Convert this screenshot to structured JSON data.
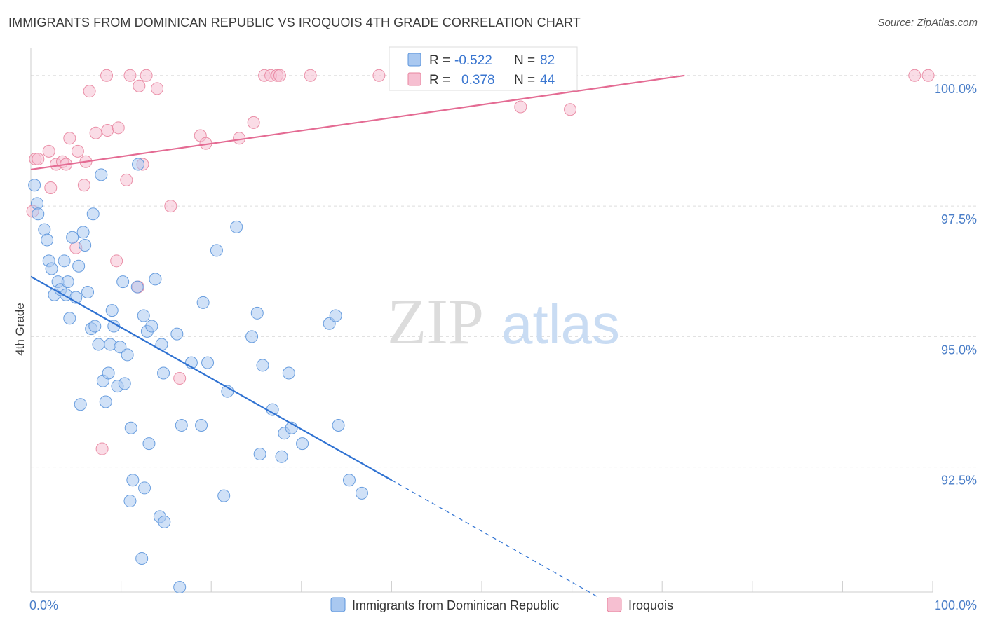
{
  "chart_data": {
    "type": "scatter",
    "title": "IMMIGRANTS FROM DOMINICAN REPUBLIC VS IROQUOIS 4TH GRADE CORRELATION CHART",
    "source": "Source: ZipAtlas.com",
    "ylabel": "4th Grade",
    "xlabel": "",
    "xlim": [
      0,
      100
    ],
    "ylim": [
      90.2,
      100.4
    ],
    "x_tick_labels": [
      "0.0%",
      "100.0%"
    ],
    "y_ticks": [
      {
        "value": 92.5,
        "label": "92.5%"
      },
      {
        "value": 95.0,
        "label": "95.0%"
      },
      {
        "value": 97.5,
        "label": "97.5%"
      },
      {
        "value": 100.0,
        "label": "100.0%"
      }
    ],
    "grid": true,
    "watermark": {
      "part1": "ZIP",
      "part2": "atlas"
    },
    "legend_box": {
      "rows": [
        {
          "r_label": "R =",
          "r_value": "-0.522",
          "n_label": "N =",
          "n_value": "82"
        },
        {
          "r_label": "R =",
          "r_value": "0.378",
          "n_label": "N =",
          "n_value": "44"
        }
      ]
    },
    "legend_bottom": [
      {
        "label": "Immigrants from Dominican Republic"
      },
      {
        "label": "Iroquois"
      }
    ],
    "colors": {
      "blue_fill": "#a9c8f0",
      "blue_stroke": "#5b95dc",
      "blue_line": "#2f72d2",
      "pink_fill": "#f6bfd1",
      "pink_stroke": "#e8849f",
      "pink_line": "#e46b93",
      "value_text": "#3a76d0",
      "axis_tick_label": "#4a7ec8",
      "grid": "#dddddd"
    },
    "series": [
      {
        "name": "Immigrants from Dominican Republic",
        "trend": {
          "x0": 0,
          "y0": 96.15,
          "x1": 40,
          "y1": 92.25,
          "dash_x1": 63,
          "dash_y1": 90.0
        },
        "points": [
          [
            0.4,
            97.9
          ],
          [
            0.7,
            97.55
          ],
          [
            0.8,
            97.35
          ],
          [
            1.5,
            97.05
          ],
          [
            1.8,
            96.85
          ],
          [
            2.0,
            96.45
          ],
          [
            2.3,
            96.3
          ],
          [
            2.6,
            95.8
          ],
          [
            3.0,
            96.05
          ],
          [
            3.3,
            95.9
          ],
          [
            3.7,
            96.45
          ],
          [
            3.9,
            95.8
          ],
          [
            4.1,
            96.05
          ],
          [
            4.3,
            95.35
          ],
          [
            4.6,
            96.9
          ],
          [
            5.0,
            95.75
          ],
          [
            5.3,
            96.35
          ],
          [
            5.5,
            93.7
          ],
          [
            5.8,
            97.0
          ],
          [
            6.0,
            96.75
          ],
          [
            6.3,
            95.85
          ],
          [
            6.7,
            95.15
          ],
          [
            6.9,
            97.35
          ],
          [
            7.1,
            95.2
          ],
          [
            7.5,
            94.85
          ],
          [
            7.8,
            98.1
          ],
          [
            8.0,
            94.15
          ],
          [
            8.3,
            93.75
          ],
          [
            8.6,
            94.3
          ],
          [
            8.8,
            94.85
          ],
          [
            9.0,
            95.5
          ],
          [
            9.2,
            95.2
          ],
          [
            9.6,
            94.05
          ],
          [
            9.9,
            94.8
          ],
          [
            10.2,
            96.05
          ],
          [
            10.4,
            94.1
          ],
          [
            10.7,
            94.65
          ],
          [
            11.0,
            91.85
          ],
          [
            11.3,
            92.25
          ],
          [
            11.1,
            93.25
          ],
          [
            11.8,
            95.95
          ],
          [
            11.9,
            98.3
          ],
          [
            12.3,
            90.75
          ],
          [
            12.5,
            95.4
          ],
          [
            12.6,
            92.1
          ],
          [
            12.9,
            95.1
          ],
          [
            13.1,
            92.95
          ],
          [
            13.4,
            95.2
          ],
          [
            13.8,
            96.1
          ],
          [
            14.3,
            91.55
          ],
          [
            14.5,
            94.85
          ],
          [
            14.7,
            94.3
          ],
          [
            14.8,
            91.45
          ],
          [
            16.2,
            95.05
          ],
          [
            16.5,
            90.2
          ],
          [
            16.7,
            93.3
          ],
          [
            17.8,
            94.5
          ],
          [
            18.9,
            93.3
          ],
          [
            19.1,
            95.65
          ],
          [
            19.6,
            94.5
          ],
          [
            20.6,
            96.65
          ],
          [
            21.4,
            91.95
          ],
          [
            21.8,
            93.95
          ],
          [
            22.8,
            97.1
          ],
          [
            24.5,
            95.0
          ],
          [
            25.1,
            95.45
          ],
          [
            25.4,
            92.75
          ],
          [
            25.7,
            94.45
          ],
          [
            26.8,
            93.6
          ],
          [
            27.8,
            92.7
          ],
          [
            28.1,
            93.15
          ],
          [
            28.6,
            94.3
          ],
          [
            28.9,
            93.25
          ],
          [
            30.1,
            92.95
          ],
          [
            33.1,
            95.25
          ],
          [
            33.8,
            95.4
          ],
          [
            34.1,
            93.3
          ],
          [
            35.3,
            92.25
          ],
          [
            36.7,
            92.0
          ]
        ]
      },
      {
        "name": "Iroquois",
        "trend": {
          "x0": 0,
          "y0": 98.2,
          "x1": 72.5,
          "y1": 100.0
        },
        "points": [
          [
            0.2,
            97.4
          ],
          [
            0.5,
            98.4
          ],
          [
            0.8,
            98.4
          ],
          [
            2.0,
            98.55
          ],
          [
            2.2,
            97.85
          ],
          [
            2.8,
            98.3
          ],
          [
            3.5,
            98.35
          ],
          [
            3.9,
            98.3
          ],
          [
            4.3,
            98.8
          ],
          [
            5.0,
            96.7
          ],
          [
            5.2,
            98.55
          ],
          [
            5.9,
            97.9
          ],
          [
            6.1,
            98.35
          ],
          [
            6.5,
            99.7
          ],
          [
            7.2,
            98.9
          ],
          [
            7.9,
            92.85
          ],
          [
            8.4,
            100.0
          ],
          [
            8.5,
            98.95
          ],
          [
            9.5,
            96.45
          ],
          [
            9.7,
            99.0
          ],
          [
            10.6,
            98.0
          ],
          [
            11.0,
            100.0
          ],
          [
            11.9,
            95.95
          ],
          [
            12.0,
            99.8
          ],
          [
            12.4,
            98.3
          ],
          [
            12.8,
            100.0
          ],
          [
            14.0,
            99.75
          ],
          [
            15.5,
            97.5
          ],
          [
            16.5,
            94.2
          ],
          [
            18.8,
            98.85
          ],
          [
            19.4,
            98.7
          ],
          [
            23.1,
            98.8
          ],
          [
            24.7,
            99.1
          ],
          [
            25.9,
            100.0
          ],
          [
            26.6,
            100.0
          ],
          [
            27.3,
            100.0
          ],
          [
            27.6,
            100.0
          ],
          [
            31.0,
            100.0
          ],
          [
            38.6,
            100.0
          ],
          [
            54.3,
            99.4
          ],
          [
            59.8,
            99.35
          ],
          [
            98.0,
            100.0
          ],
          [
            99.5,
            100.0
          ]
        ]
      }
    ]
  }
}
